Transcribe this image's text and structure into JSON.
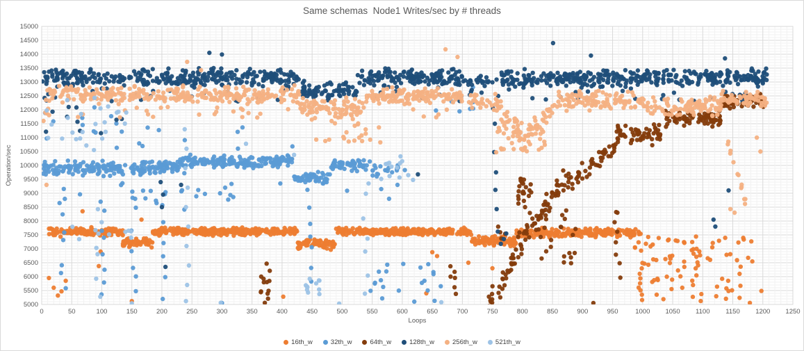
{
  "chart_data": {
    "type": "scatter",
    "title": "Same schemas  Node1 Writes/sec by # threads",
    "xlabel": "Loops",
    "ylabel": "Operation/sec",
    "xlim": [
      0,
      1250
    ],
    "ylim": [
      5000,
      15000
    ],
    "x_tick_step": 50,
    "y_tick_step": 500,
    "x_minor_step": 10,
    "y_minor_step": 100,
    "grid": true,
    "legend_position": "bottom",
    "marker_radius": 3.2,
    "colors": {
      "major_grid": "#d9d9d9",
      "minor_grid": "#f2f2f2",
      "axis_text": "#595959",
      "title_text": "#595959",
      "plot_border": "#d9d9d9"
    },
    "series": [
      {
        "name": "16th_w",
        "color": "#ED7D31",
        "clusters": [
          {
            "kind": "band",
            "x0": 12,
            "x1": 135,
            "yc": 7600,
            "ys": 180,
            "n": 130
          },
          {
            "kind": "band",
            "x0": 135,
            "x1": 185,
            "yc": 7230,
            "ys": 200,
            "n": 55
          },
          {
            "kind": "band",
            "x0": 185,
            "x1": 425,
            "yc": 7620,
            "ys": 160,
            "n": 270
          },
          {
            "kind": "band",
            "x0": 425,
            "x1": 490,
            "yc": 7180,
            "ys": 220,
            "n": 70
          },
          {
            "kind": "band",
            "x0": 490,
            "x1": 715,
            "yc": 7620,
            "ys": 150,
            "n": 260
          },
          {
            "kind": "band",
            "x0": 715,
            "x1": 790,
            "yc": 7280,
            "ys": 210,
            "n": 85
          },
          {
            "kind": "band",
            "x0": 790,
            "x1": 1000,
            "yc": 7580,
            "ys": 180,
            "n": 220
          },
          {
            "kind": "box",
            "x0": 985,
            "x1": 1205,
            "y0": 5050,
            "y1": 7450,
            "n": 80
          },
          {
            "kind": "vstreak",
            "x": 995,
            "y0": 5050,
            "y1": 6600,
            "n": 7,
            "xs": 6
          },
          {
            "kind": "vstreak",
            "x": 1092,
            "y0": 5300,
            "y1": 6900,
            "n": 7,
            "xs": 10
          },
          {
            "kind": "points",
            "pts": [
              [
                12,
                5950
              ],
              [
                20,
                5600
              ],
              [
                27,
                5320
              ],
              [
                33,
                5470
              ],
              [
                40,
                5850
              ],
              [
                95,
                6380
              ],
              [
                98,
                6900
              ],
              [
                150,
                5120
              ],
              [
                166,
                8050
              ],
              [
                68,
                8350
              ],
              [
                402,
                5280
              ],
              [
                640,
                5400
              ],
              [
                650,
                6880
              ],
              [
                658,
                6740
              ],
              [
                710,
                6500
              ],
              [
                750,
                6300
              ]
            ]
          }
        ]
      },
      {
        "name": "32th_w",
        "color": "#5B9BD5",
        "clusters": [
          {
            "kind": "band",
            "x0": 0,
            "x1": 230,
            "yc": 9900,
            "ys": 300,
            "n": 200
          },
          {
            "kind": "band",
            "x0": 230,
            "x1": 420,
            "yc": 10130,
            "ys": 260,
            "n": 180
          },
          {
            "kind": "band",
            "x0": 420,
            "x1": 480,
            "yc": 9550,
            "ys": 260,
            "n": 55
          },
          {
            "kind": "band",
            "x0": 480,
            "x1": 537,
            "yc": 10000,
            "ys": 230,
            "n": 55
          },
          {
            "kind": "band",
            "x0": 537,
            "x1": 605,
            "yc": 9900,
            "ys": 380,
            "n": 22
          },
          {
            "kind": "box",
            "x0": 0,
            "x1": 535,
            "y0": 8600,
            "y1": 9400,
            "n": 26
          },
          {
            "kind": "box",
            "x0": 0,
            "x1": 140,
            "y0": 10600,
            "y1": 12100,
            "n": 12
          },
          {
            "kind": "box",
            "x0": 150,
            "x1": 420,
            "y0": 10500,
            "y1": 11400,
            "n": 8
          },
          {
            "kind": "vstreak",
            "x": 35,
            "y0": 5150,
            "y1": 9100,
            "n": 7,
            "xs": 5
          },
          {
            "kind": "vstreak",
            "x": 100,
            "y0": 5000,
            "y1": 9000,
            "n": 8,
            "xs": 5
          },
          {
            "kind": "vstreak",
            "x": 152,
            "y0": 5000,
            "y1": 9250,
            "n": 7,
            "xs": 5
          },
          {
            "kind": "vstreak",
            "x": 205,
            "y0": 5050,
            "y1": 9350,
            "n": 7,
            "xs": 5
          },
          {
            "kind": "vstreak",
            "x": 235,
            "y0": 7950,
            "y1": 11250,
            "n": 5,
            "xs": 4
          },
          {
            "kind": "vstreak",
            "x": 450,
            "y0": 5600,
            "y1": 8900,
            "n": 6,
            "xs": 6
          },
          {
            "kind": "box",
            "x0": 545,
            "x1": 675,
            "y0": 5050,
            "y1": 6600,
            "n": 20
          },
          {
            "kind": "box",
            "x0": 645,
            "x1": 720,
            "y0": 11900,
            "y1": 13200,
            "n": 10
          },
          {
            "kind": "points",
            "pts": [
              [
                565,
                9150
              ],
              [
                578,
                8800
              ],
              [
                592,
                9300
              ],
              [
                620,
                5100
              ],
              [
                300,
                5050
              ]
            ]
          }
        ]
      },
      {
        "name": "64th_w",
        "color": "#843C0C",
        "clusters": [
          {
            "kind": "box",
            "x0": 363,
            "x1": 380,
            "y0": 5000,
            "y1": 6560,
            "n": 13
          },
          {
            "kind": "box",
            "x0": 676,
            "x1": 692,
            "y0": 5350,
            "y1": 6600,
            "n": 6
          },
          {
            "kind": "ramp",
            "x0": 744,
            "x1": 800,
            "ya0": 5100,
            "ya1": 7000,
            "ys": 550,
            "n": 42
          },
          {
            "kind": "box",
            "x0": 793,
            "x1": 816,
            "y0": 8250,
            "y1": 9750,
            "n": 22
          },
          {
            "kind": "ramp",
            "x0": 800,
            "x1": 882,
            "ya0": 7300,
            "ya1": 9800,
            "ys": 480,
            "n": 52
          },
          {
            "kind": "box",
            "x0": 828,
            "x1": 892,
            "y0": 6400,
            "y1": 8600,
            "n": 16
          },
          {
            "kind": "ramp",
            "x0": 880,
            "x1": 955,
            "ya0": 9300,
            "ya1": 10800,
            "ys": 430,
            "n": 42
          },
          {
            "kind": "vstreak",
            "x": 957,
            "y0": 5850,
            "y1": 8400,
            "n": 7,
            "xs": 6
          },
          {
            "kind": "band",
            "x0": 955,
            "x1": 1030,
            "yc": 11100,
            "ys": 450,
            "n": 58
          },
          {
            "kind": "band",
            "x0": 1030,
            "x1": 1130,
            "yc": 11700,
            "ys": 360,
            "n": 78
          },
          {
            "kind": "band",
            "x0": 1130,
            "x1": 1207,
            "yc": 12300,
            "ys": 300,
            "n": 68
          },
          {
            "kind": "box",
            "x0": 750,
            "x1": 900,
            "y0": 7280,
            "y1": 7800,
            "n": 12
          },
          {
            "kind": "points",
            "pts": [
              [
                918,
                5050
              ],
              [
                958,
                8300
              ]
            ]
          }
        ]
      },
      {
        "name": "128th_w",
        "color": "#1F4E79",
        "clusters": [
          {
            "kind": "band",
            "x0": 0,
            "x1": 430,
            "yc": 13150,
            "ys": 400,
            "n": 320
          },
          {
            "kind": "band",
            "x0": 430,
            "x1": 525,
            "yc": 12700,
            "ys": 380,
            "n": 70
          },
          {
            "kind": "band",
            "x0": 525,
            "x1": 700,
            "yc": 13150,
            "ys": 360,
            "n": 150
          },
          {
            "kind": "band",
            "x0": 700,
            "x1": 765,
            "yc": 13000,
            "ys": 360,
            "n": 24
          },
          {
            "kind": "band",
            "x0": 765,
            "x1": 1000,
            "yc": 13100,
            "ys": 390,
            "n": 200
          },
          {
            "kind": "band",
            "x0": 1000,
            "x1": 1207,
            "yc": 13150,
            "ys": 360,
            "n": 170
          },
          {
            "kind": "box",
            "x0": 0,
            "x1": 1205,
            "y0": 12300,
            "y1": 12700,
            "n": 55
          },
          {
            "kind": "box",
            "x0": 0,
            "x1": 140,
            "y0": 11000,
            "y1": 12300,
            "n": 10
          },
          {
            "kind": "points",
            "pts": [
              [
                751,
                12050
              ],
              [
                754,
                11500
              ],
              [
                753,
                10480
              ],
              [
                756,
                9750
              ],
              [
                755,
                9120
              ],
              [
                757,
                8430
              ],
              [
                759,
                7620
              ],
              [
                764,
                7180
              ],
              [
                769,
                7350
              ],
              [
                773,
                7550
              ]
            ]
          },
          {
            "kind": "points",
            "pts": [
              [
                198,
                9400
              ],
              [
                202,
                8950
              ],
              [
                200,
                8500
              ],
              [
                206,
                6350
              ]
            ]
          },
          {
            "kind": "points",
            "pts": [
              [
                279,
                14050
              ],
              [
                300,
                13990
              ],
              [
                851,
                14400
              ],
              [
                914,
                13950
              ],
              [
                1137,
                13850
              ]
            ]
          },
          {
            "kind": "points",
            "pts": [
              [
                1118,
                8050
              ],
              [
                1121,
                7800
              ],
              [
                1143,
                9100
              ],
              [
                626,
                9680
              ],
              [
                232,
                9300
              ]
            ]
          }
        ]
      },
      {
        "name": "256th_w",
        "color": "#F4B183",
        "clusters": [
          {
            "kind": "band",
            "x0": 0,
            "x1": 430,
            "yc": 12550,
            "ys": 350,
            "n": 290
          },
          {
            "kind": "band",
            "x0": 430,
            "x1": 540,
            "yc": 12050,
            "ys": 420,
            "n": 70
          },
          {
            "kind": "box",
            "x0": 455,
            "x1": 570,
            "y0": 10800,
            "y1": 11700,
            "n": 22
          },
          {
            "kind": "band",
            "x0": 540,
            "x1": 700,
            "yc": 12500,
            "ys": 340,
            "n": 140
          },
          {
            "kind": "band",
            "x0": 700,
            "x1": 752,
            "yc": 12300,
            "ys": 320,
            "n": 20
          },
          {
            "kind": "ramp",
            "x0": 752,
            "x1": 805,
            "ya0": 12250,
            "ya1": 10900,
            "ys": 450,
            "n": 42
          },
          {
            "kind": "box",
            "x0": 756,
            "x1": 838,
            "y0": 10450,
            "y1": 11800,
            "n": 36
          },
          {
            "kind": "ramp",
            "x0": 805,
            "x1": 862,
            "ya0": 11000,
            "ya1": 12350,
            "ys": 400,
            "n": 36
          },
          {
            "kind": "band",
            "x0": 862,
            "x1": 1000,
            "yc": 12350,
            "ys": 390,
            "n": 105
          },
          {
            "kind": "band",
            "x0": 1000,
            "x1": 1130,
            "yc": 12100,
            "ys": 420,
            "n": 95
          },
          {
            "kind": "band",
            "x0": 1130,
            "x1": 1207,
            "yc": 12400,
            "ys": 300,
            "n": 55
          },
          {
            "kind": "ramp",
            "x0": 1133,
            "x1": 1172,
            "ya0": 11400,
            "ya1": 8600,
            "ys": 260,
            "n": 13
          },
          {
            "kind": "box",
            "x0": 0,
            "x1": 700,
            "y0": 11700,
            "y1": 12100,
            "n": 40
          },
          {
            "kind": "points",
            "pts": [
              [
                242,
                13725
              ],
              [
                265,
                13425
              ],
              [
                672,
                14175
              ],
              [
                692,
                13900
              ],
              [
                1146,
                8430
              ],
              [
                1153,
                8300
              ],
              [
                3,
                11600
              ],
              [
                6,
                11900
              ],
              [
                8,
                9300
              ],
              [
                1190,
                11000
              ],
              [
                1196,
                10500
              ]
            ]
          }
        ]
      },
      {
        "name": "521th_w",
        "color": "#9DC3E6",
        "clusters": [
          {
            "kind": "box",
            "x0": 0,
            "x1": 150,
            "y0": 10550,
            "y1": 12450,
            "n": 22
          },
          {
            "kind": "box",
            "x0": 15,
            "x1": 215,
            "y0": 7330,
            "y1": 7800,
            "n": 9
          },
          {
            "kind": "vstreak",
            "x": 95,
            "y0": 5050,
            "y1": 8800,
            "n": 6,
            "xs": 5
          },
          {
            "kind": "points",
            "pts": [
              [
                238,
                11300
              ],
              [
                241,
                10600
              ],
              [
                239,
                9900
              ],
              [
                243,
                9200
              ],
              [
                240,
                8500
              ],
              [
                244,
                7800
              ],
              [
                241,
                7100
              ],
              [
                245,
                6400
              ],
              [
                242,
                5700
              ],
              [
                240,
                5120
              ]
            ]
          },
          {
            "kind": "box",
            "x0": 430,
            "x1": 463,
            "y0": 5000,
            "y1": 5950,
            "n": 11
          },
          {
            "kind": "box",
            "x0": 556,
            "x1": 602,
            "y0": 9350,
            "y1": 10450,
            "n": 11
          },
          {
            "kind": "vstreak",
            "x": 540,
            "y0": 5150,
            "y1": 9800,
            "n": 7,
            "xs": 5
          },
          {
            "kind": "points",
            "pts": [
              [
                340,
                10780
              ],
              [
                420,
                10380
              ],
              [
                298,
                5060
              ],
              [
                495,
                5030
              ],
              [
                665,
                5080
              ],
              [
                150,
                5040
              ],
              [
                610,
                9650
              ],
              [
                618,
                9480
              ],
              [
                88,
                12430
              ],
              [
                125,
                11900
              ]
            ]
          }
        ]
      }
    ]
  },
  "legend": {
    "items": [
      "16th_w",
      "32th_w",
      "64th_w",
      "128th_w",
      "256th_w",
      "521th_w"
    ]
  }
}
